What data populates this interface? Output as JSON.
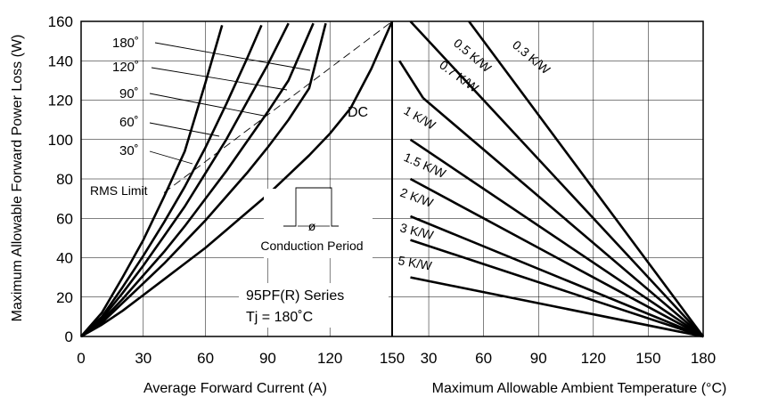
{
  "chart_data": [
    {
      "type": "line",
      "xlabel": "Average Forward Current (A)",
      "ylabel": "Maximum Allowable Forward Power Loss (W)",
      "xlim": [
        0,
        150
      ],
      "ylim": [
        0,
        160
      ],
      "xticks": [
        0,
        30,
        60,
        90,
        120,
        150
      ],
      "yticks": [
        0,
        20,
        40,
        60,
        80,
        100,
        120,
        140,
        160
      ],
      "grid": true,
      "series": [
        {
          "name": "180˚",
          "x": [
            0,
            10,
            20,
            30,
            40,
            50,
            60,
            68
          ],
          "y": [
            0,
            12,
            30,
            49,
            71,
            94,
            129,
            158
          ]
        },
        {
          "name": "120˚",
          "x": [
            0,
            10,
            20,
            30,
            40,
            50,
            60,
            70,
            80,
            87
          ],
          "y": [
            0,
            10,
            25,
            41,
            58,
            76,
            96,
            118,
            141,
            158
          ]
        },
        {
          "name": "90˚",
          "x": [
            0,
            10,
            20,
            30,
            40,
            50,
            60,
            70,
            80,
            90,
            100
          ],
          "y": [
            0,
            9,
            22,
            36,
            51,
            66,
            83,
            100,
            119,
            138,
            159
          ]
        },
        {
          "name": "60˚",
          "x": [
            0,
            10,
            20,
            30,
            40,
            50,
            60,
            70,
            80,
            90,
            100,
            112
          ],
          "y": [
            0,
            8,
            19,
            31,
            43,
            56,
            70,
            84,
            99,
            114,
            130,
            159
          ]
        },
        {
          "name": "30˚",
          "x": [
            0,
            10,
            20,
            30,
            40,
            50,
            60,
            70,
            80,
            90,
            100,
            110,
            118
          ],
          "y": [
            0,
            7,
            17,
            27,
            37,
            48,
            59,
            71,
            83,
            96,
            110,
            126,
            159
          ]
        },
        {
          "name": "DC",
          "x": [
            0,
            10,
            20,
            30,
            40,
            50,
            60,
            70,
            80,
            90,
            100,
            110,
            120,
            130,
            140,
            150
          ],
          "y": [
            0,
            6,
            13,
            21,
            29,
            37,
            45,
            54,
            63,
            72,
            82,
            92,
            103,
            116,
            136,
            160
          ]
        }
      ],
      "rms_limit": {
        "x": [
          40,
          150
        ],
        "y": [
          73,
          160
        ]
      },
      "labels": {
        "conduction": [
          "180˚",
          "120˚",
          "90˚",
          "60˚",
          "30˚"
        ],
        "dc": "DC",
        "rms": "RMS Limit",
        "conduction_period": "Conduction Period",
        "phi": "ø",
        "series_name": "95PF(R) Series",
        "tj": "Tj  = 180˚C"
      }
    },
    {
      "type": "line",
      "xlabel": "Maximum Allowable Ambient Temperature (°C)",
      "xlim": [
        10,
        180
      ],
      "xticks": [
        30,
        60,
        90,
        120,
        150,
        180
      ],
      "first_tick_label": "150",
      "ylim": [
        0,
        160
      ],
      "grid": true,
      "series": [
        {
          "name": "0.3 K/W",
          "x": [
            52,
            180
          ],
          "y": [
            160,
            0
          ]
        },
        {
          "name": "0.5 K/W",
          "x": [
            20,
            180
          ],
          "y": [
            160,
            0
          ]
        },
        {
          "name": "0.7 K/W",
          "x": [
            27,
            180
          ],
          "y": [
            121,
            0
          ]
        },
        {
          "name": "1 K/W",
          "x": [
            20,
            180
          ],
          "y": [
            100,
            0
          ]
        },
        {
          "name": "1.5 K/W",
          "x": [
            20,
            180
          ],
          "y": [
            80,
            0
          ]
        },
        {
          "name": "2 K/W",
          "x": [
            20,
            180
          ],
          "y": [
            61,
            0
          ]
        },
        {
          "name": "3 K/W",
          "x": [
            20,
            180
          ],
          "y": [
            49,
            0
          ]
        },
        {
          "name": "5 K/W",
          "x": [
            20,
            180
          ],
          "y": [
            30,
            0
          ]
        },
        {
          "name": "0.7 K/W",
          "x": [
            14,
            27
          ],
          "y": [
            140,
            121
          ]
        }
      ]
    }
  ]
}
